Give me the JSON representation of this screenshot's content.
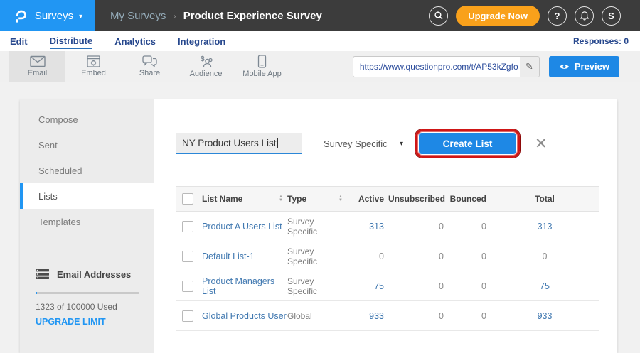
{
  "colors": {
    "accent_blue": "#2196f3",
    "button_blue": "#1e88e5",
    "topbar_dark": "#3c3c3c",
    "upgrade_orange": "#f9a11b",
    "nav_navy": "#26478d",
    "link_blue": "#4078b0",
    "annotation_red": "#cf1616"
  },
  "topbar": {
    "logo_menu": {
      "label": "Surveys"
    },
    "breadcrumb": {
      "parent": "My Surveys",
      "separator": "›",
      "current": "Product Experience Survey"
    },
    "upgrade_button": "Upgrade Now",
    "help_label": "?",
    "avatar_label": "S"
  },
  "nav": {
    "tabs": [
      {
        "label": "Edit"
      },
      {
        "label": "Distribute"
      },
      {
        "label": "Analytics"
      },
      {
        "label": "Integration"
      }
    ],
    "active_tab": "Distribute",
    "responses": "Responses: 0"
  },
  "toolbar": {
    "items": [
      {
        "label": "Email",
        "icon": "email-icon"
      },
      {
        "label": "Embed",
        "icon": "embed-icon"
      },
      {
        "label": "Share",
        "icon": "share-icon"
      },
      {
        "label": "Audience",
        "icon": "audience-icon"
      },
      {
        "label": "Mobile App",
        "icon": "mobile-app-icon"
      }
    ],
    "active_item": "Email",
    "survey_url": "https://www.questionpro.com/t/AP53kZgfo",
    "preview_label": "Preview"
  },
  "sidebar": {
    "items": [
      {
        "label": "Compose"
      },
      {
        "label": "Sent"
      },
      {
        "label": "Scheduled"
      },
      {
        "label": "Lists"
      },
      {
        "label": "Templates"
      }
    ],
    "active_item": "Lists",
    "email_addresses": {
      "title": "Email Addresses",
      "usage_text": "1323 of 100000 Used",
      "used": 1323,
      "limit": 100000,
      "upgrade_link": "UPGRADE LIMIT"
    }
  },
  "content": {
    "list_name_input": {
      "value": "NY Product Users List"
    },
    "type_dropdown": {
      "value": "Survey Specific"
    },
    "create_button": "Create List",
    "table": {
      "columns": [
        "List Name",
        "Type",
        "Active",
        "Unsubscribed",
        "Bounced",
        "Total"
      ],
      "rows": [
        {
          "name": "Product A Users List",
          "type": "Survey Specific",
          "active": "313",
          "unsubscribed": "0",
          "bounced": "0",
          "total": "313"
        },
        {
          "name": "Default List-1",
          "type": "Survey Specific",
          "active": "0",
          "unsubscribed": "0",
          "bounced": "0",
          "total": "0"
        },
        {
          "name": "Product Managers List",
          "type": "Survey Specific",
          "active": "75",
          "unsubscribed": "0",
          "bounced": "0",
          "total": "75"
        },
        {
          "name": "Global Products User",
          "type": "Global",
          "active": "933",
          "unsubscribed": "0",
          "bounced": "0",
          "total": "933"
        }
      ]
    }
  },
  "icons": {
    "caret_down": "▾",
    "close": "✕",
    "sort_up": "▲",
    "sort_down": "▼",
    "pencil": "✎"
  }
}
